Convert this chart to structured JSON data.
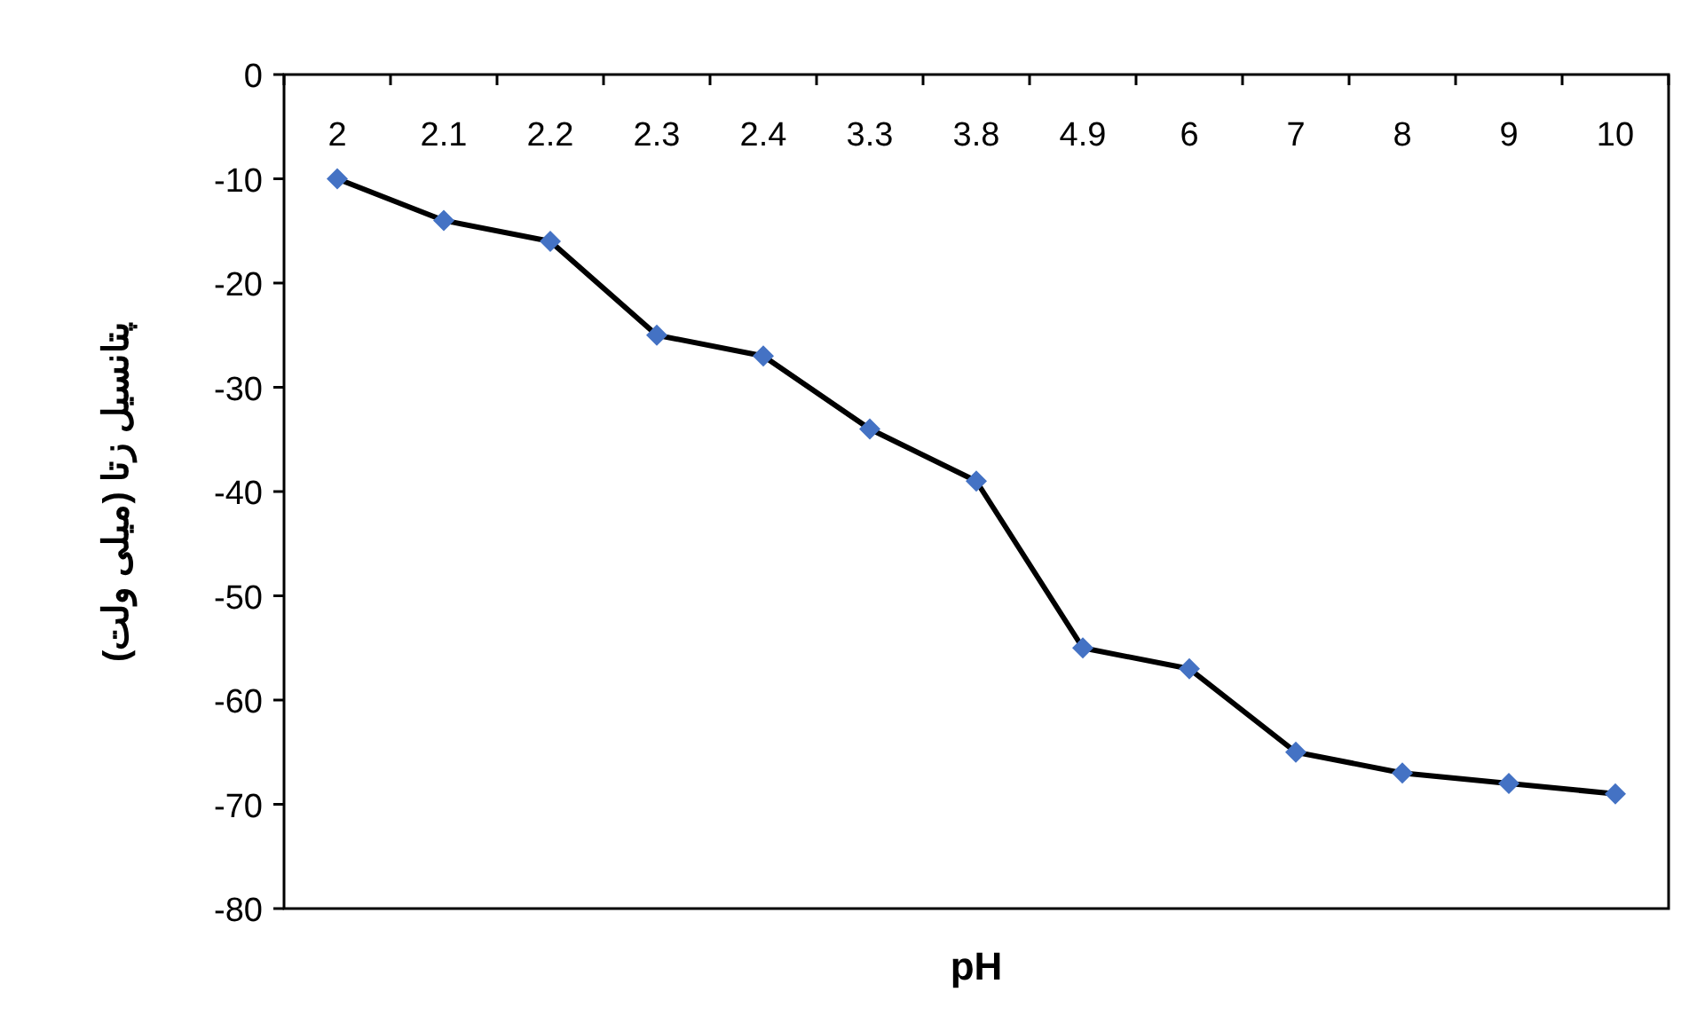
{
  "chart_data": {
    "type": "line",
    "xlabel": "pH",
    "ylabel": "پتانسیل زتا (میلی ولت)",
    "categories": [
      "2",
      "2.1",
      "2.2",
      "2.3",
      "2.4",
      "3.3",
      "3.8",
      "4.9",
      "6",
      "7",
      "8",
      "9",
      "10"
    ],
    "series": [
      {
        "color": "#4472c4",
        "values": [
          -10,
          -14,
          -16,
          -25,
          -27,
          -34,
          -39,
          -55,
          -57,
          -65,
          -67,
          -68,
          -69
        ]
      }
    ],
    "ylim": [
      -80,
      0
    ],
    "yticks": [
      -80,
      -70,
      -60,
      -50,
      -40,
      -30,
      -20,
      -10,
      0
    ],
    "marker": "diamond",
    "line_style": "solid",
    "grid": false
  }
}
